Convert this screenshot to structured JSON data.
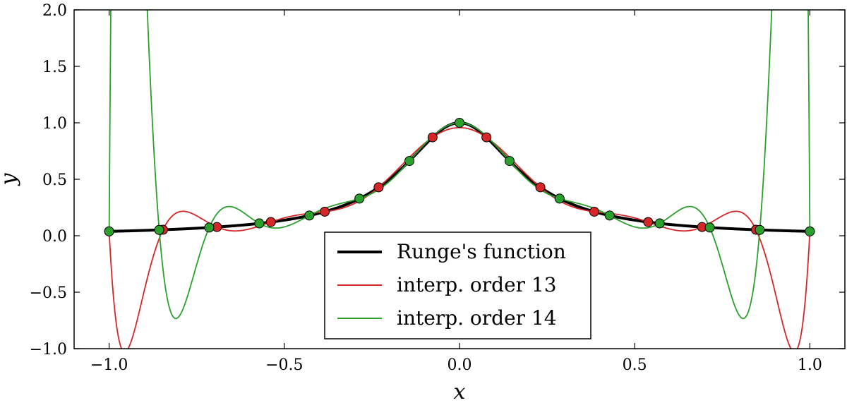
{
  "chart_data": {
    "type": "line",
    "title": "",
    "xlabel": "x",
    "ylabel": "y",
    "xlim": [
      -1.1,
      1.1
    ],
    "ylim": [
      -1.0,
      2.0
    ],
    "x_ticks": [
      -1.0,
      -0.5,
      0.0,
      0.5,
      1.0
    ],
    "x_tick_labels": [
      "−1.0",
      "−0.5",
      "0.0",
      "0.5",
      "1.0"
    ],
    "y_ticks": [
      -1.0,
      -0.5,
      0.0,
      0.5,
      1.0,
      1.5,
      2.0
    ],
    "y_tick_labels": [
      "−1.0",
      "−0.5",
      "0.0",
      "0.5",
      "1.0",
      "1.5",
      "2.0"
    ],
    "grid": false,
    "legend_position": "bottom-center",
    "series": [
      {
        "name": "Runge's function",
        "color": "#000000",
        "formula": "1 / (1 + 25 x^2)"
      },
      {
        "name": "interp. order 13",
        "color": "#d62728",
        "nodes_x": [
          -1.0,
          -0.8462,
          -0.6923,
          -0.5385,
          -0.3846,
          -0.2308,
          -0.0769,
          0.0769,
          0.2308,
          0.3846,
          0.5385,
          0.6923,
          0.8462,
          1.0
        ]
      },
      {
        "name": "interp. order 14",
        "color": "#2ca02c",
        "nodes_x": [
          -1.0,
          -0.8571,
          -0.7143,
          -0.5714,
          -0.4286,
          -0.2857,
          -0.1429,
          0.0,
          0.1429,
          0.2857,
          0.4286,
          0.5714,
          0.7143,
          0.8571,
          1.0
        ]
      }
    ]
  }
}
